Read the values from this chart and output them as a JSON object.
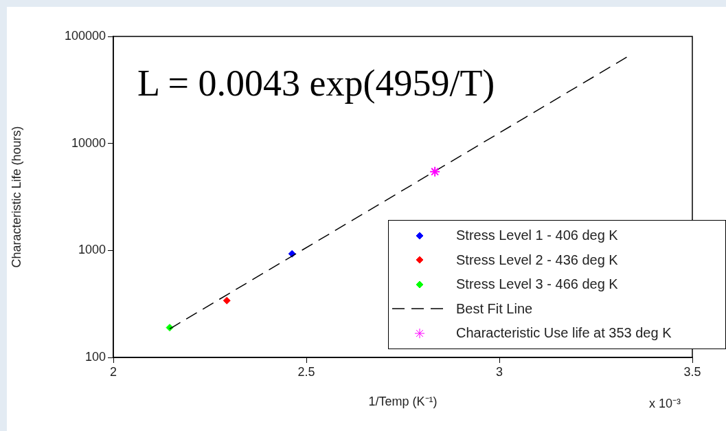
{
  "chart_data": {
    "type": "scatter",
    "xlabel": "1/Temp (K⁻¹)",
    "ylabel": "Characteristic Life (hours)",
    "xlim": [
      2,
      3.5
    ],
    "xticks": [
      2,
      2.5,
      3,
      3.5
    ],
    "ylim": [
      100,
      100000
    ],
    "yticks": [
      100,
      1000,
      10000,
      100000
    ],
    "log": "y",
    "legend": "bottom right",
    "annotations": [
      "L = 0.0043 exp(4959/T)",
      "x 10⁻³"
    ],
    "series": [
      {
        "name": "Stress Level 1 - 406 deg K",
        "color": "#0000ff",
        "marker": "diamond",
        "x": [
          2.463
        ],
        "values": [
          930
        ]
      },
      {
        "name": "Stress Level 2 - 436 deg K",
        "color": "#ff0000",
        "marker": "diamond",
        "x": [
          2.294
        ],
        "values": [
          340
        ]
      },
      {
        "name": "Stress Level 3 - 466 deg K",
        "color": "#00ff00",
        "marker": "diamond",
        "x": [
          2.146
        ],
        "values": [
          190
        ]
      },
      {
        "name": "Best Fit Line",
        "type": "line",
        "color": "#000000",
        "marker": "none",
        "line_style": "dashed",
        "x": [
          2.146,
          3.33
        ],
        "values": [
          185,
          64000
        ]
      },
      {
        "name": "Characteristic Use life at 353 deg K",
        "color": "#ff00ff",
        "marker": "cross",
        "x": [
          2.833
        ],
        "values": [
          5450
        ]
      }
    ]
  }
}
